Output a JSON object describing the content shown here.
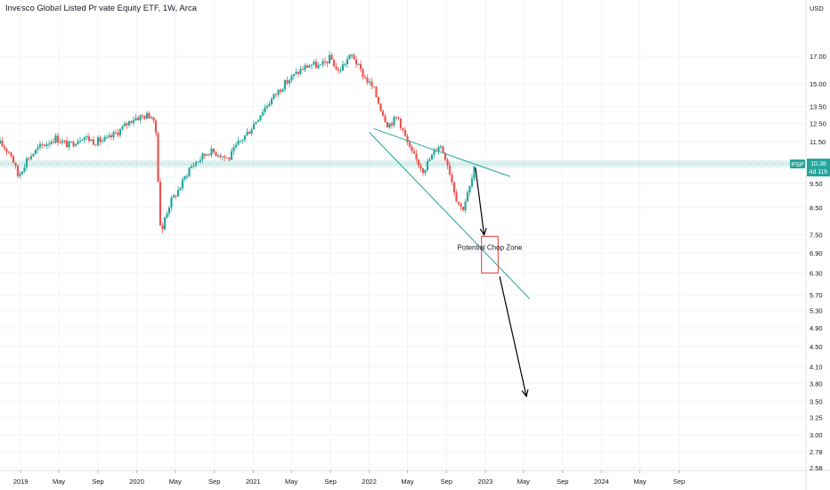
{
  "chart_data": {
    "type": "candlestick",
    "title": "Invesco Global Listed Private Equity ETF, 1W, Arca",
    "currency": "USD",
    "symbol": "PSP",
    "last_price": "10.38",
    "countdown": "4d 11h",
    "y_scale": "log",
    "ylim": [
      2.55,
      22.0
    ],
    "xlim": [
      "2018-10-28",
      "2025-10-05"
    ],
    "grid": true,
    "colors": {
      "up": "#26a69a",
      "down": "#ef5350",
      "trendline": "#26a69a",
      "zone": "#e53935",
      "badge": "#26a69a",
      "arrow": "#000000"
    },
    "y_ticks": [
      "2.58",
      "2.78",
      "3.00",
      "3.25",
      "3.50",
      "3.80",
      "4.10",
      "4.50",
      "4.90",
      "5.30",
      "5.70",
      "6.30",
      "6.90",
      "7.50",
      "8.50",
      "9.50",
      "10.50",
      "11.50",
      "12.50",
      "13.50",
      "15.00",
      "17.00"
    ],
    "x_ticks": [
      {
        "label": "2019",
        "date": "2019-01-01"
      },
      {
        "label": "May",
        "date": "2019-05-01"
      },
      {
        "label": "Sep",
        "date": "2019-09-01"
      },
      {
        "label": "2020",
        "date": "2020-01-01"
      },
      {
        "label": "May",
        "date": "2020-05-01"
      },
      {
        "label": "Sep",
        "date": "2020-09-01"
      },
      {
        "label": "2021",
        "date": "2021-01-01"
      },
      {
        "label": "May",
        "date": "2021-05-01"
      },
      {
        "label": "Sep",
        "date": "2021-09-01"
      },
      {
        "label": "2022",
        "date": "2022-01-01"
      },
      {
        "label": "May",
        "date": "2022-05-01"
      },
      {
        "label": "Sep",
        "date": "2022-09-01"
      },
      {
        "label": "2023",
        "date": "2023-01-01"
      },
      {
        "label": "May",
        "date": "2023-05-01"
      },
      {
        "label": "Sep",
        "date": "2023-09-01"
      },
      {
        "label": "2024",
        "date": "2024-01-01"
      },
      {
        "label": "May",
        "date": "2024-05-01"
      },
      {
        "label": "Sep",
        "date": "2024-09-01"
      }
    ],
    "close_path": [
      [
        "2018-10-28",
        11.4
      ],
      [
        "2018-12-01",
        10.9
      ],
      [
        "2018-12-24",
        9.8
      ],
      [
        "2019-01-20",
        10.6
      ],
      [
        "2019-03-01",
        11.2
      ],
      [
        "2019-04-20",
        11.7
      ],
      [
        "2019-06-01",
        11.3
      ],
      [
        "2019-07-15",
        11.8
      ],
      [
        "2019-08-20",
        11.5
      ],
      [
        "2019-10-01",
        11.6
      ],
      [
        "2019-11-15",
        12.2
      ],
      [
        "2019-12-20",
        12.8
      ],
      [
        "2020-02-15",
        13.0
      ],
      [
        "2020-03-01",
        12.0
      ],
      [
        "2020-03-18",
        7.2
      ],
      [
        "2020-03-25",
        8.0
      ],
      [
        "2020-04-15",
        8.7
      ],
      [
        "2020-05-15",
        9.3
      ],
      [
        "2020-06-15",
        10.2
      ],
      [
        "2020-07-15",
        10.6
      ],
      [
        "2020-08-15",
        11.0
      ],
      [
        "2020-09-15",
        10.9
      ],
      [
        "2020-10-15",
        10.6
      ],
      [
        "2020-11-15",
        11.4
      ],
      [
        "2020-12-20",
        12.1
      ],
      [
        "2021-02-01",
        13.3
      ],
      [
        "2021-03-01",
        14.0
      ],
      [
        "2021-04-01",
        14.8
      ],
      [
        "2021-05-01",
        15.4
      ],
      [
        "2021-06-01",
        16.0
      ],
      [
        "2021-07-01",
        16.4
      ],
      [
        "2021-08-01",
        16.2
      ],
      [
        "2021-09-01",
        16.9
      ],
      [
        "2021-09-25",
        15.8
      ],
      [
        "2021-10-25",
        16.8
      ],
      [
        "2021-11-10",
        17.1
      ],
      [
        "2021-12-01",
        16.0
      ],
      [
        "2022-01-15",
        14.6
      ],
      [
        "2022-02-10",
        13.2
      ],
      [
        "2022-03-01",
        12.4
      ],
      [
        "2022-04-01",
        12.9
      ],
      [
        "2022-05-10",
        11.0
      ],
      [
        "2022-06-20",
        10.1
      ],
      [
        "2022-08-10",
        11.4
      ],
      [
        "2022-09-01",
        10.6
      ],
      [
        "2022-10-01",
        8.9
      ],
      [
        "2022-10-20",
        8.4
      ],
      [
        "2022-11-15",
        9.4
      ],
      [
        "2022-12-01",
        10.38
      ]
    ],
    "trendlines": [
      {
        "name": "upper",
        "from": [
          "2022-01-15",
          12.2
        ],
        "to": [
          "2023-03-20",
          9.8
        ]
      },
      {
        "name": "lower",
        "from": [
          "2022-01-01",
          12.0
        ],
        "to": [
          "2023-05-20",
          5.6
        ]
      }
    ],
    "zone": {
      "label": "Potential Chop Zone",
      "x": [
        "2022-12-20",
        "2023-02-10"
      ],
      "y": [
        6.3,
        7.45
      ]
    },
    "arrows": [
      {
        "from": [
          "2022-12-01",
          10.2
        ],
        "to": [
          "2022-12-28",
          7.5
        ]
      },
      {
        "from": [
          "2023-02-15",
          6.2
        ],
        "to": [
          "2023-05-10",
          3.58
        ]
      }
    ]
  }
}
